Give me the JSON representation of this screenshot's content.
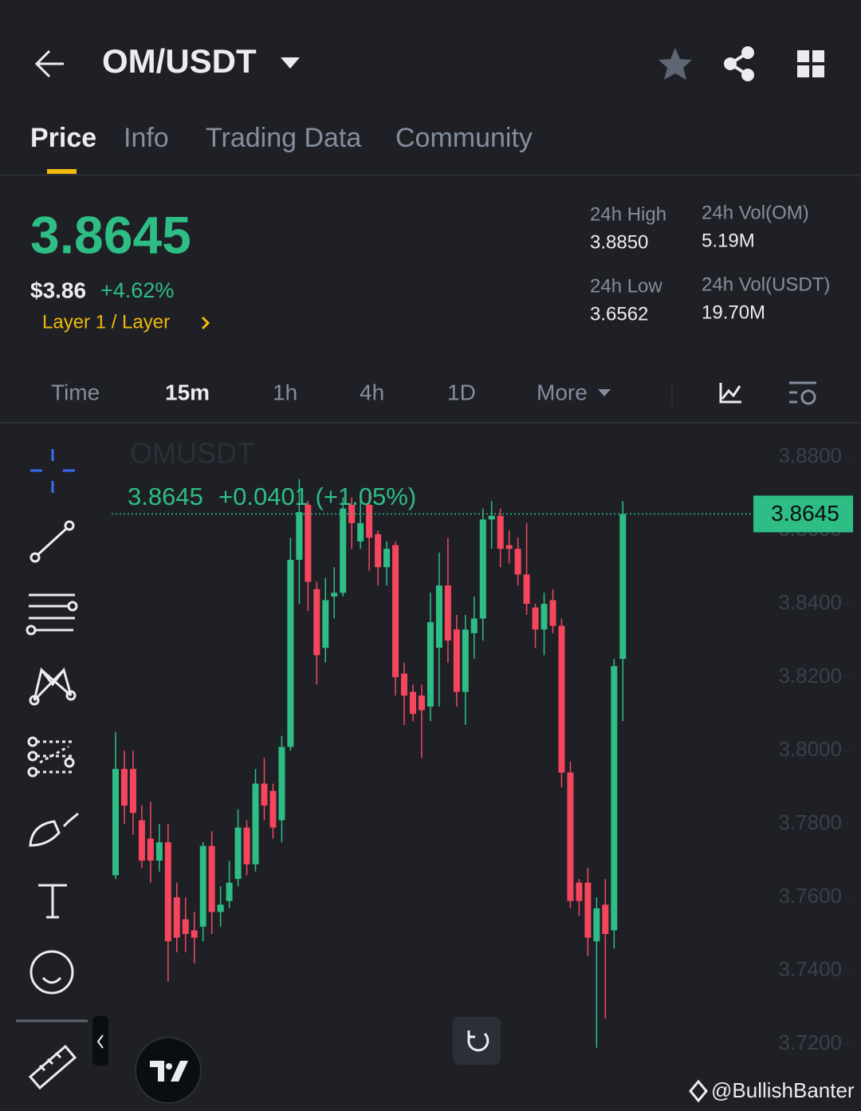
{
  "header": {
    "title": "OM/USDT"
  },
  "tabs": [
    "Price",
    "Info",
    "Trading Data",
    "Community"
  ],
  "ticker": {
    "price": "3.8645",
    "usd_price": "$3.86",
    "change": "+4.62%",
    "category": "Layer 1 / Layer"
  },
  "stats": [
    {
      "label": "24h High",
      "value": "3.8850"
    },
    {
      "label": "24h Vol(OM)",
      "value": "5.19M"
    },
    {
      "label": "24h Low",
      "value": "3.6562"
    },
    {
      "label": "24h Vol(USDT)",
      "value": "19.70M"
    }
  ],
  "timeframes": [
    "Time",
    "15m",
    "1h",
    "4h",
    "1D",
    "More"
  ],
  "watermark": "@BullishBanter",
  "chart_data": {
    "type": "candlestick",
    "title": "OMUSDT",
    "last_price": 3.8645,
    "summary": "+0.0401 (+1.05%)",
    "up_color": "#2ebd85",
    "down_color": "#f6465d",
    "ylim": [
      3.7024,
      3.8872
    ],
    "yticks": [
      {
        "value": 3.88,
        "label": "3.8800"
      },
      {
        "value": 3.86,
        "label": "3.8600"
      },
      {
        "value": 3.84,
        "label": "3.8400"
      },
      {
        "value": 3.82,
        "label": "3.8200"
      },
      {
        "value": 3.8,
        "label": "3.8000"
      },
      {
        "value": 3.78,
        "label": "3.7800"
      },
      {
        "value": 3.76,
        "label": "3.7600"
      },
      {
        "value": 3.74,
        "label": "3.7400"
      },
      {
        "value": 3.72,
        "label": "3.7200"
      }
    ],
    "open": [
      3.766,
      3.795,
      3.795,
      3.781,
      3.776,
      3.77,
      3.775,
      3.76,
      3.754,
      3.751,
      3.752,
      3.774,
      3.756,
      3.759,
      3.765,
      3.779,
      3.769,
      3.791,
      3.789,
      3.781,
      3.801,
      3.852,
      3.867,
      3.844,
      3.828,
      3.842,
      3.843,
      3.867,
      3.857,
      3.867,
      3.859,
      3.85,
      3.856,
      3.821,
      3.816,
      3.815,
      3.812,
      3.828,
      3.845,
      3.833,
      3.816,
      3.832,
      3.836,
      3.863,
      3.864,
      3.856,
      3.855,
      3.848,
      3.839,
      3.833,
      3.841,
      3.834,
      3.794,
      3.764,
      3.764,
      3.748,
      3.758,
      3.751,
      3.825
    ],
    "high": [
      3.805,
      3.8,
      3.8,
      3.785,
      3.786,
      3.78,
      3.78,
      3.764,
      3.76,
      3.756,
      3.775,
      3.778,
      3.763,
      3.77,
      3.784,
      3.781,
      3.795,
      3.798,
      3.791,
      3.804,
      3.858,
      3.874,
      3.868,
      3.846,
      3.847,
      3.85,
      3.869,
      3.869,
      3.87,
      3.87,
      3.86,
      3.857,
      3.857,
      3.824,
      3.818,
      3.818,
      3.843,
      3.854,
      3.858,
      3.837,
      3.837,
      3.842,
      3.866,
      3.868,
      3.866,
      3.86,
      3.858,
      3.862,
      3.84,
      3.843,
      3.844,
      3.836,
      3.797,
      3.765,
      3.768,
      3.76,
      3.765,
      3.825,
      3.868
    ],
    "low": [
      3.765,
      3.78,
      3.777,
      3.768,
      3.764,
      3.767,
      3.737,
      3.745,
      3.745,
      3.742,
      3.748,
      3.75,
      3.752,
      3.757,
      3.763,
      3.766,
      3.767,
      3.781,
      3.776,
      3.775,
      3.8,
      3.84,
      3.838,
      3.818,
      3.824,
      3.836,
      3.842,
      3.855,
      3.855,
      3.849,
      3.845,
      3.845,
      3.815,
      3.807,
      3.808,
      3.798,
      3.808,
      3.812,
      3.824,
      3.812,
      3.807,
      3.825,
      3.83,
      3.855,
      3.85,
      3.851,
      3.845,
      3.837,
      3.828,
      3.826,
      3.832,
      3.79,
      3.757,
      3.755,
      3.744,
      3.719,
      3.727,
      3.746,
      3.808
    ],
    "close": [
      3.795,
      3.785,
      3.783,
      3.77,
      3.77,
      3.775,
      3.748,
      3.749,
      3.75,
      3.749,
      3.774,
      3.756,
      3.758,
      3.764,
      3.779,
      3.769,
      3.791,
      3.785,
      3.779,
      3.801,
      3.852,
      3.865,
      3.846,
      3.826,
      3.841,
      3.843,
      3.866,
      3.862,
      3.862,
      3.858,
      3.85,
      3.855,
      3.82,
      3.815,
      3.81,
      3.811,
      3.835,
      3.845,
      3.83,
      3.816,
      3.833,
      3.836,
      3.863,
      3.864,
      3.855,
      3.855,
      3.848,
      3.84,
      3.833,
      3.84,
      3.834,
      3.794,
      3.759,
      3.759,
      3.749,
      3.757,
      3.75,
      3.823,
      3.8645
    ]
  }
}
